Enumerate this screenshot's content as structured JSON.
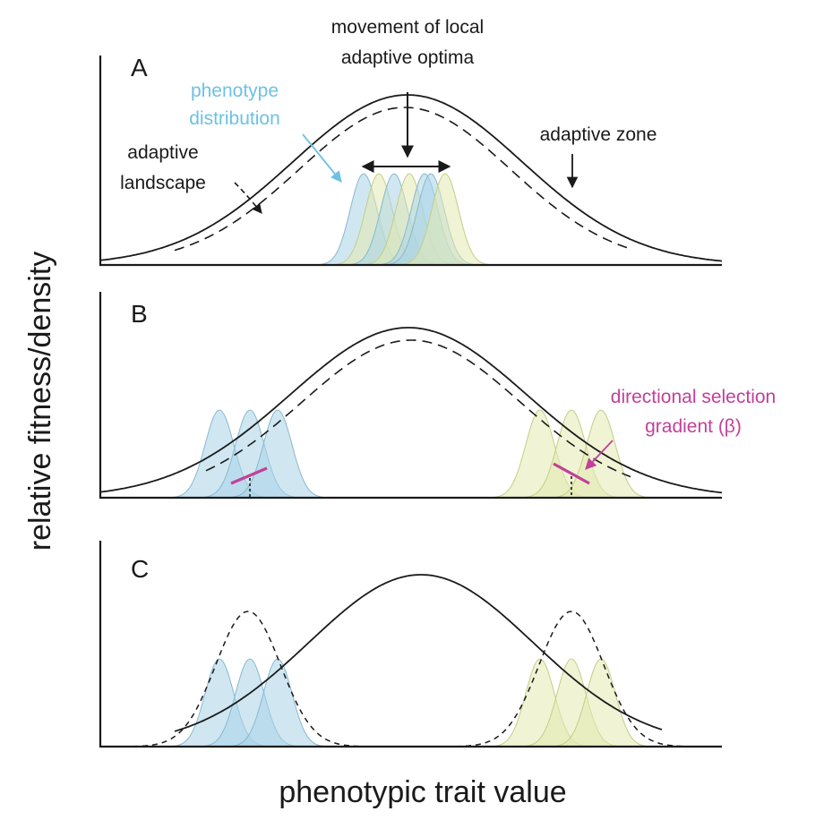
{
  "axes": {
    "ylabel": "relative fitness/density",
    "xlabel": "phenotypic trait value"
  },
  "panels": [
    {
      "label": "A",
      "annotations": {
        "movement": [
          "movement of local",
          "adaptive optima"
        ],
        "phenotype": [
          "phenotype",
          "distribution"
        ],
        "landscape": [
          "adaptive",
          "landscape"
        ],
        "zone": "adaptive zone"
      }
    },
    {
      "label": "B",
      "annotations": {
        "gradient": [
          "directional selection",
          "gradient (β)"
        ]
      }
    },
    {
      "label": "C"
    }
  ],
  "colors": {
    "blue": "#a9d4e8",
    "blue_stroke": "#86b8d0",
    "green": "#e3eab0",
    "green_stroke": "#c2cf84",
    "phenotype_label": "#6ec1e4",
    "gradient_label": "#c2409a",
    "ink": "#1a1a1a"
  }
}
